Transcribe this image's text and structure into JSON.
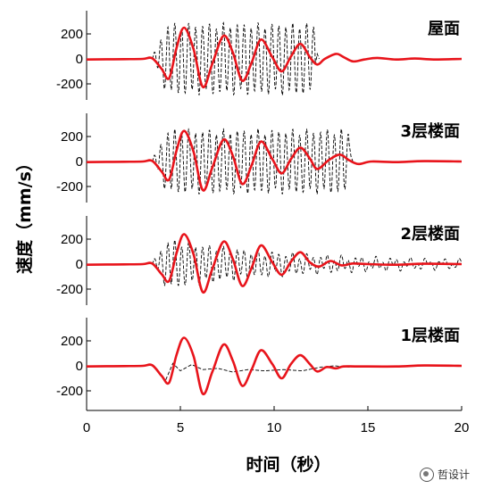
{
  "chart_data": {
    "type": "line",
    "xlabel": "时间（秒）",
    "ylabel": "速度（mm/s）",
    "xlim": [
      0,
      20
    ],
    "x_ticks": [
      0,
      5,
      10,
      15,
      20
    ],
    "ylim": [
      -300,
      350
    ],
    "y_ticks": [
      -200,
      0,
      200
    ],
    "y_tick_labels": [
      "-200",
      "0",
      "200"
    ],
    "grid": false,
    "series_styles": {
      "red_solid": {
        "color": "#e8141b",
        "style": "solid"
      },
      "black_dashed": {
        "color": "#000000",
        "style": "dashed"
      }
    },
    "panels": [
      {
        "title": "屋面",
        "red_points": [
          [
            0,
            -5
          ],
          [
            2,
            -2
          ],
          [
            3,
            0
          ],
          [
            3.5,
            5
          ],
          [
            4,
            -80
          ],
          [
            4.4,
            -155
          ],
          [
            4.8,
            90
          ],
          [
            5.2,
            250
          ],
          [
            5.7,
            80
          ],
          [
            6.2,
            -225
          ],
          [
            6.7,
            -40
          ],
          [
            7.3,
            185
          ],
          [
            7.8,
            50
          ],
          [
            8.3,
            -175
          ],
          [
            8.8,
            -30
          ],
          [
            9.3,
            155
          ],
          [
            9.9,
            15
          ],
          [
            10.4,
            -100
          ],
          [
            10.9,
            20
          ],
          [
            11.4,
            120
          ],
          [
            11.9,
            15
          ],
          [
            12.3,
            -45
          ],
          [
            12.7,
            0
          ],
          [
            13.3,
            40
          ],
          [
            13.7,
            15
          ],
          [
            14.2,
            -20
          ],
          [
            14.8,
            -5
          ],
          [
            15.5,
            8
          ],
          [
            16.5,
            -5
          ],
          [
            17.5,
            3
          ],
          [
            18.5,
            -5
          ],
          [
            20,
            0
          ]
        ],
        "black_start": 3.5,
        "black_end": 12.2,
        "black_amp": 280,
        "black_period": 0.37,
        "black_tail": 40
      },
      {
        "title": "3层楼面",
        "red_points": [
          [
            0,
            -5
          ],
          [
            2,
            -2
          ],
          [
            3,
            0
          ],
          [
            3.5,
            5
          ],
          [
            4,
            -80
          ],
          [
            4.4,
            -145
          ],
          [
            4.8,
            90
          ],
          [
            5.2,
            245
          ],
          [
            5.7,
            80
          ],
          [
            6.2,
            -230
          ],
          [
            6.7,
            -50
          ],
          [
            7.3,
            175
          ],
          [
            7.8,
            45
          ],
          [
            8.3,
            -180
          ],
          [
            8.8,
            -30
          ],
          [
            9.3,
            160
          ],
          [
            9.9,
            20
          ],
          [
            10.4,
            -95
          ],
          [
            10.9,
            20
          ],
          [
            11.4,
            110
          ],
          [
            11.9,
            25
          ],
          [
            12.3,
            -60
          ],
          [
            12.9,
            10
          ],
          [
            13.5,
            55
          ],
          [
            14,
            10
          ],
          [
            14.5,
            -20
          ],
          [
            15.2,
            0
          ],
          [
            16.5,
            -5
          ],
          [
            18,
            3
          ],
          [
            20,
            0
          ]
        ],
        "black_start": 3.5,
        "black_end": 14.0,
        "black_amp": 250,
        "black_period": 0.37,
        "black_tail": 40
      },
      {
        "title": "2层楼面",
        "red_points": [
          [
            0,
            -5
          ],
          [
            2,
            -2
          ],
          [
            3,
            0
          ],
          [
            3.5,
            5
          ],
          [
            4,
            -80
          ],
          [
            4.4,
            -135
          ],
          [
            4.8,
            90
          ],
          [
            5.2,
            240
          ],
          [
            5.7,
            80
          ],
          [
            6.2,
            -225
          ],
          [
            6.7,
            -40
          ],
          [
            7.3,
            180
          ],
          [
            7.8,
            40
          ],
          [
            8.3,
            -175
          ],
          [
            8.8,
            -30
          ],
          [
            9.3,
            150
          ],
          [
            9.9,
            15
          ],
          [
            10.4,
            -85
          ],
          [
            10.9,
            20
          ],
          [
            11.4,
            95
          ],
          [
            11.9,
            15
          ],
          [
            12.4,
            -20
          ],
          [
            13,
            25
          ],
          [
            13.6,
            -10
          ],
          [
            14.2,
            5
          ],
          [
            15,
            0
          ],
          [
            16.5,
            -5
          ],
          [
            18,
            3
          ],
          [
            20,
            0
          ]
        ],
        "black_start": 3.5,
        "black_end": 20,
        "black_amp": 190,
        "black_period": 0.37,
        "black_tail": 0,
        "black_decay": 0.14
      },
      {
        "title": "1层楼面",
        "red_points": [
          [
            0,
            -5
          ],
          [
            2,
            -2
          ],
          [
            3,
            0
          ],
          [
            3.5,
            5
          ],
          [
            4,
            -80
          ],
          [
            4.4,
            -135
          ],
          [
            4.8,
            90
          ],
          [
            5.2,
            225
          ],
          [
            5.7,
            80
          ],
          [
            6.2,
            -225
          ],
          [
            6.7,
            -50
          ],
          [
            7.3,
            170
          ],
          [
            7.8,
            40
          ],
          [
            8.3,
            -160
          ],
          [
            8.8,
            -30
          ],
          [
            9.3,
            125
          ],
          [
            9.9,
            15
          ],
          [
            10.4,
            -100
          ],
          [
            10.9,
            15
          ],
          [
            11.4,
            85
          ],
          [
            11.9,
            15
          ],
          [
            12.3,
            -45
          ],
          [
            12.8,
            -10
          ],
          [
            13.3,
            -20
          ],
          [
            13.7,
            -5
          ],
          [
            14.5,
            -5
          ],
          [
            16.5,
            -5
          ],
          [
            18,
            3
          ],
          [
            20,
            0
          ]
        ],
        "black_points": [
          [
            3.5,
            5
          ],
          [
            4.2,
            -120
          ],
          [
            4.6,
            20
          ],
          [
            5,
            -40
          ],
          [
            5.6,
            10
          ],
          [
            6.2,
            -30
          ],
          [
            7,
            -20
          ],
          [
            7.8,
            -50
          ],
          [
            8.6,
            -30
          ],
          [
            9.5,
            -40
          ],
          [
            10.5,
            -30
          ],
          [
            11.5,
            -40
          ],
          [
            12.5,
            -10
          ],
          [
            13.2,
            0
          ],
          [
            14,
            -10
          ],
          [
            15,
            0
          ]
        ]
      }
    ]
  },
  "watermark": {
    "text": "哲设计",
    "icon": "wechat-logo-icon"
  }
}
